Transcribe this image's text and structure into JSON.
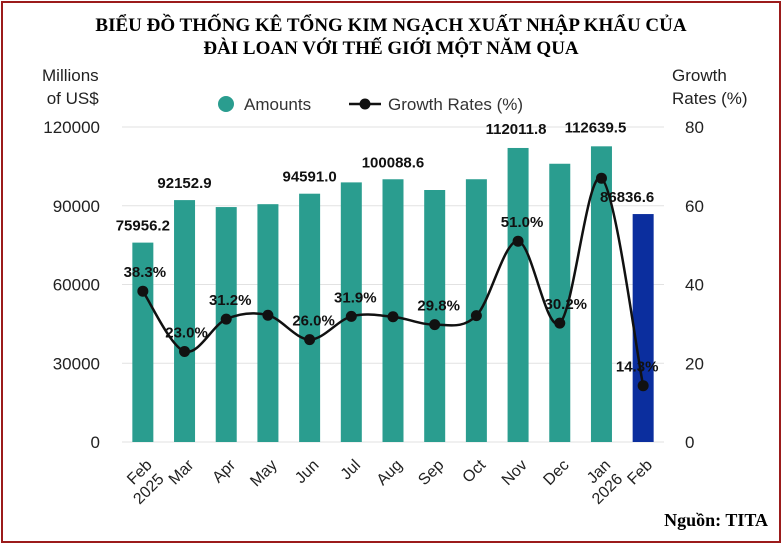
{
  "title_line1": "BIỂU ĐỒ THỐNG KÊ TỔNG KIM NGẠCH XUẤT NHẬP KHẨU CỦA",
  "title_line2": "ĐÀI LOAN VỚI THẾ GIỚI MỘT NĂM QUA",
  "source": "Nguồn: TITA",
  "colors": {
    "bar": "#2a9d8f",
    "bar_highlight": "#0b2e9e",
    "line": "#111111",
    "frame": "#9b1b1b"
  },
  "chart_data": {
    "type": "bar",
    "categories": [
      "Feb\n2025",
      "Mar",
      "Apr",
      "May",
      "Jun",
      "Jul",
      "Aug",
      "Sep",
      "Oct",
      "Nov",
      "Dec",
      "Jan\n2026",
      "Feb"
    ],
    "series": [
      {
        "name": "Amounts",
        "axis": "left",
        "values": [
          75956.2,
          92152.9,
          89500,
          90600,
          94591.0,
          98900,
          100088.6,
          96000,
          100100,
          112011.8,
          106000,
          112639.5,
          86836.6
        ],
        "labels": [
          "75956.2",
          "92152.9",
          "",
          "",
          "94591.0",
          "",
          "100088.6",
          "",
          "",
          "112011.8",
          "",
          "112639.5",
          "86836.6"
        ],
        "highlight_index": 12
      },
      {
        "name": "Growth Rates (%)",
        "type": "line",
        "axis": "right",
        "values": [
          38.3,
          23.0,
          31.2,
          32.2,
          26.0,
          31.9,
          31.8,
          29.8,
          32.1,
          51.0,
          30.2,
          67.0,
          14.3
        ],
        "labels": [
          "38.3%",
          "23.0%",
          "31.2%",
          "",
          "26.0%",
          "31.9%",
          "",
          "29.8%",
          "",
          "51.0%",
          "30.2%",
          "",
          "14.3%"
        ]
      }
    ],
    "y_left": {
      "label_line1": "Millions",
      "label_line2": "of US$",
      "min": 0,
      "max": 120000,
      "ticks": [
        "0",
        "30000",
        "60000",
        "90000",
        "120000"
      ]
    },
    "y_right": {
      "label_line1": "Growth",
      "label_line2": "Rates (%)",
      "min": 0,
      "max": 80,
      "ticks": [
        "0",
        "20",
        "40",
        "60",
        "80"
      ]
    },
    "legend": {
      "position": "top-center",
      "items": [
        "Amounts",
        "Growth Rates (%)"
      ]
    }
  }
}
